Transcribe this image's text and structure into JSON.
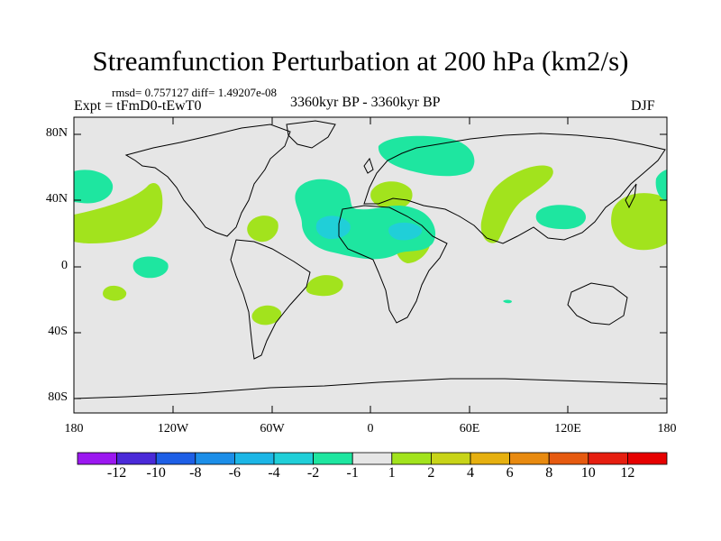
{
  "header": {
    "title": "Streamfunction Perturbation at 200 hPa (km2/s)",
    "stats": "rmsd= 0.757127 diff= 1.49207e-08",
    "experiment": "Expt = tFmD0-tEwT0",
    "period": "3360kyr BP - 3360kyr BP",
    "season": "DJF"
  },
  "map": {
    "y_ticks": [
      "80N",
      "40N",
      "0",
      "40S",
      "80S"
    ],
    "x_ticks": [
      "180",
      "120W",
      "60W",
      "0",
      "60E",
      "120E",
      "180"
    ]
  },
  "colorbar": {
    "labels": [
      "-12",
      "-10",
      "-8",
      "-6",
      "-4",
      "-2",
      "-1",
      "1",
      "2",
      "4",
      "6",
      "8",
      "10",
      "12"
    ],
    "colors": [
      "#9b18f0",
      "#4a2ad8",
      "#1e5fe6",
      "#1c8ee8",
      "#1cb6e6",
      "#20cfd8",
      "#1ee6a0",
      "#e6e6e6",
      "#a2e31d",
      "#c8d418",
      "#e6b010",
      "#e88a10",
      "#e65a10",
      "#e61e10",
      "#e60000"
    ]
  },
  "colors": {
    "ocean": "#e6e6e6",
    "pos_weak": "#a2e31d",
    "neg_weak": "#1ee6a0",
    "neg_mid": "#20cfd8"
  }
}
